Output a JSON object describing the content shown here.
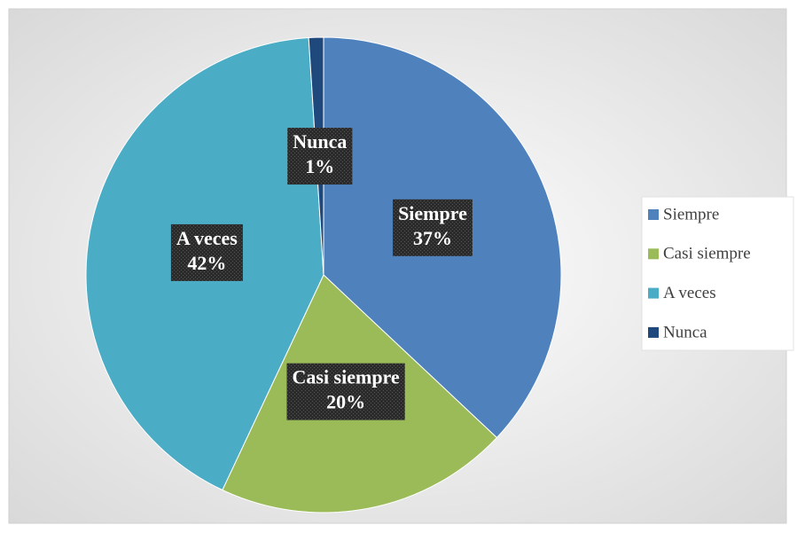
{
  "chart_data": {
    "type": "pie",
    "categories": [
      "Siempre",
      "Casi siempre",
      "A veces",
      "Nunca"
    ],
    "values": [
      37,
      20,
      42,
      1
    ],
    "value_labels": [
      "37%",
      "20%",
      "42%",
      "1%"
    ],
    "colors": [
      "#4f81bd",
      "#9bbb59",
      "#4bacc6",
      "#1f497d"
    ],
    "legend": "right"
  }
}
